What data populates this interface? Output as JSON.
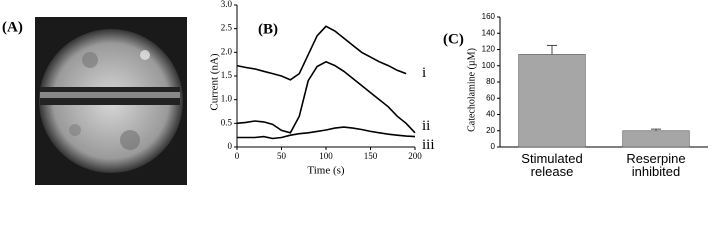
{
  "panel_labels": [
    "(A)",
    "(B)",
    "(C)"
  ],
  "chart_data": [
    {
      "type": "line",
      "xlabel": "Time (s)",
      "ylabel": "Current (nA)",
      "x": [
        0,
        10,
        20,
        30,
        40,
        50,
        60,
        70,
        80,
        90,
        100,
        110,
        120,
        130,
        140,
        150,
        160,
        170,
        180,
        190,
        200
      ],
      "series": [
        {
          "name": "i",
          "color": "#000000",
          "values": [
            1.72,
            1.68,
            1.65,
            1.6,
            1.55,
            1.5,
            1.42,
            1.55,
            1.95,
            2.35,
            2.55,
            2.45,
            2.3,
            2.15,
            2.0,
            1.9,
            1.8,
            1.72,
            1.62,
            1.55,
            null
          ]
        },
        {
          "name": "ii",
          "color": "#000000",
          "values": [
            0.5,
            0.52,
            0.55,
            0.53,
            0.48,
            0.35,
            0.3,
            0.65,
            1.4,
            1.7,
            1.8,
            1.72,
            1.6,
            1.45,
            1.3,
            1.15,
            1.0,
            0.85,
            0.65,
            0.5,
            0.3
          ]
        },
        {
          "name": "iii",
          "color": "#000000",
          "values": [
            0.2,
            0.2,
            0.2,
            0.22,
            0.18,
            0.2,
            0.25,
            0.28,
            0.3,
            0.33,
            0.36,
            0.4,
            0.42,
            0.4,
            0.37,
            0.33,
            0.3,
            0.27,
            0.25,
            0.23,
            0.22
          ]
        }
      ],
      "xlim": [
        0,
        200
      ],
      "xticks": [
        0,
        50,
        100,
        150,
        200
      ],
      "ylim": [
        0,
        3
      ],
      "yticks": [
        0,
        0.5,
        {
          "value": 1,
          "label": "1.0"
        },
        1.5,
        {
          "value": 2,
          "label": "2.0"
        },
        2.5,
        {
          "value": 3,
          "label": "3.0"
        }
      ]
    },
    {
      "type": "bar",
      "ylabel": "Catecholamine (µM)",
      "categories": [
        "Stimulated\nrelease",
        "Reserpine\ninhibited"
      ],
      "values": [
        114,
        20
      ],
      "errors": [
        11,
        2
      ],
      "color": "#a6a6a6",
      "ylim": [
        0,
        160
      ],
      "yticks": [
        0,
        20,
        40,
        60,
        80,
        100,
        120,
        140,
        160
      ]
    }
  ]
}
